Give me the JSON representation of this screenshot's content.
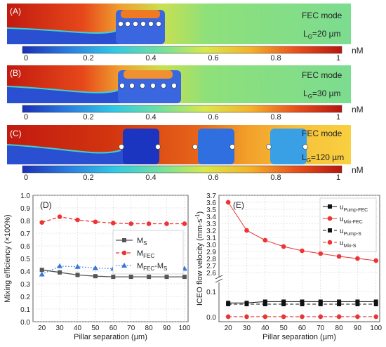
{
  "panels": [
    {
      "label": "(A)",
      "mode": "FEC mode",
      "lg_prefix": "L",
      "lg_sub": "G",
      "lg_value": "=20 µm"
    },
    {
      "label": "(B)",
      "mode": "FEC mode",
      "lg_prefix": "L",
      "lg_sub": "G",
      "lg_value": "=30 µm"
    },
    {
      "label": "(C)",
      "mode": "FEC mode",
      "lg_prefix": "L",
      "lg_sub": "G",
      "lg_value": "=120 µm"
    }
  ],
  "colorbar": {
    "ticks": [
      "0",
      "0.2",
      "0.4",
      "0.6",
      "0.8",
      "1"
    ],
    "unit": "nM",
    "colors": [
      "#1a2fb8",
      "#2a7de0",
      "#2fc8e6",
      "#6fe0a0",
      "#d8e84a",
      "#f4b22a",
      "#e8501c",
      "#b8160e"
    ]
  },
  "chart_data": [
    {
      "type": "line",
      "panel_label": "(D)",
      "xlabel": "Pillar separation (µm)",
      "ylabel": "Mixing efficiency (×100%)",
      "x": [
        20,
        30,
        40,
        50,
        60,
        70,
        80,
        90,
        100
      ],
      "xticks": [
        "20",
        "30",
        "40",
        "50",
        "60",
        "70",
        "80",
        "90",
        "100"
      ],
      "xlim": [
        15,
        102
      ],
      "ylim": [
        0,
        1.0
      ],
      "yticks": [
        "0.0",
        "0.1",
        "0.2",
        "0.3",
        "0.4",
        "0.5",
        "0.6",
        "0.7",
        "0.8",
        "0.9",
        "1.0"
      ],
      "grid": true,
      "legend_position": "center-right",
      "series": [
        {
          "name": "M",
          "sub": "S",
          "values": [
            0.41,
            0.39,
            0.37,
            0.36,
            0.355,
            0.355,
            0.355,
            0.355,
            0.355
          ],
          "color": "#555555",
          "marker": "square",
          "dash": "solid"
        },
        {
          "name": "M",
          "sub": "FEC",
          "values": [
            0.785,
            0.83,
            0.805,
            0.79,
            0.78,
            0.775,
            0.775,
            0.775,
            0.775
          ],
          "color": "#ee3333",
          "marker": "circle",
          "dash": "dash"
        },
        {
          "name": "M",
          "sub": "FEC",
          "sub2": "-M",
          "sub3": "S",
          "values": [
            0.375,
            0.44,
            0.435,
            0.425,
            0.42,
            0.42,
            0.42,
            0.42,
            0.42
          ],
          "color": "#3377dd",
          "marker": "triangle",
          "dash": "dot"
        }
      ]
    },
    {
      "type": "line",
      "panel_label": "(E)",
      "xlabel": "Pillar separation (µm)",
      "ylabel": "ICEO flow velocity (mm·s",
      "ylabel_sup": "-1",
      "ylabel_end": ")",
      "x": [
        20,
        30,
        40,
        50,
        60,
        70,
        80,
        90,
        100
      ],
      "xticks": [
        "20",
        "30",
        "40",
        "50",
        "60",
        "70",
        "80",
        "90",
        "100"
      ],
      "xlim": [
        15,
        102
      ],
      "yticks_lower": [
        "0.0",
        "0.1"
      ],
      "yticks_upper": [
        "2.6",
        "2.7",
        "2.8",
        "2.9",
        "3.0",
        "3.1",
        "3.2",
        "3.3",
        "3.4",
        "3.5",
        "3.6",
        "3.7"
      ],
      "axis_break": true,
      "grid": true,
      "legend_position": "top-right",
      "series": [
        {
          "name": "u",
          "sub": "Pump-FEC",
          "values": [
            0.055,
            0.055,
            0.06,
            0.06,
            0.06,
            0.06,
            0.06,
            0.06,
            0.06
          ],
          "color": "#111111",
          "marker": "square",
          "dash": "solid"
        },
        {
          "name": "u",
          "sub": "Mix-FEC",
          "values": [
            3.6,
            3.2,
            3.06,
            2.97,
            2.91,
            2.87,
            2.83,
            2.8,
            2.77
          ],
          "color": "#ee3333",
          "marker": "circle",
          "dash": "solid"
        },
        {
          "name": "u",
          "sub": "Pump-S",
          "values": [
            0.05,
            0.05,
            0.05,
            0.05,
            0.05,
            0.05,
            0.05,
            0.05,
            0.05
          ],
          "color": "#111111",
          "marker": "square",
          "dash": "dash"
        },
        {
          "name": "u",
          "sub": "Mix-S",
          "values": [
            0.0,
            0.0,
            0.0,
            0.0,
            0.0,
            0.0,
            0.0,
            0.0,
            0.0
          ],
          "color": "#ee3333",
          "marker": "circle",
          "dash": "dash"
        }
      ]
    }
  ]
}
